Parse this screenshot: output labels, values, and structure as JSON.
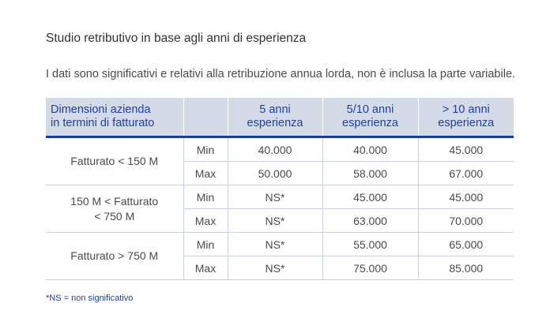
{
  "title": "Studio retributivo in base agli anni di esperienza",
  "subtitle": "I dati sono significativi e relativi alla retribuzione annua lorda, non è inclusa la parte variabile.",
  "table": {
    "headers": {
      "dimension_line1": "Dimensioni azienda",
      "dimension_line2": "in termini di fatturato",
      "minmax": "",
      "col1_line1": "5 anni",
      "col1_line2": "esperienza",
      "col2_line1": "5/10 anni",
      "col2_line2": "esperienza",
      "col3_line1": "> 10 anni",
      "col3_line2": "esperienza"
    },
    "groups": [
      {
        "label_line1": "Fatturato < 150 M",
        "label_line2": "",
        "rows": [
          {
            "kind": "Min",
            "values": [
              "40.000",
              "40.000",
              "45.000"
            ]
          },
          {
            "kind": "Max",
            "values": [
              "50.000",
              "58.000",
              "67.000"
            ]
          }
        ]
      },
      {
        "label_line1": "150 M < Fatturato",
        "label_line2": "< 750 M",
        "rows": [
          {
            "kind": "Min",
            "values": [
              "NS*",
              "45.000",
              "45.000"
            ]
          },
          {
            "kind": "Max",
            "values": [
              "NS*",
              "63.000",
              "70.000"
            ]
          }
        ]
      },
      {
        "label_line1": "Fatturato > 750 M",
        "label_line2": "",
        "rows": [
          {
            "kind": "Min",
            "values": [
              "NS*",
              "55.000",
              "65.000"
            ]
          },
          {
            "kind": "Max",
            "values": [
              "NS*",
              "75.000",
              "85.000"
            ]
          }
        ]
      }
    ]
  },
  "footnote": "*NS = non significativo",
  "colors": {
    "header_bg": "#d4dbe6",
    "header_text": "#1f3fa5",
    "header_rule": "#1c3aa6",
    "grid_line": "#c7d1e3",
    "footnote_text": "#1f3fa5"
  }
}
